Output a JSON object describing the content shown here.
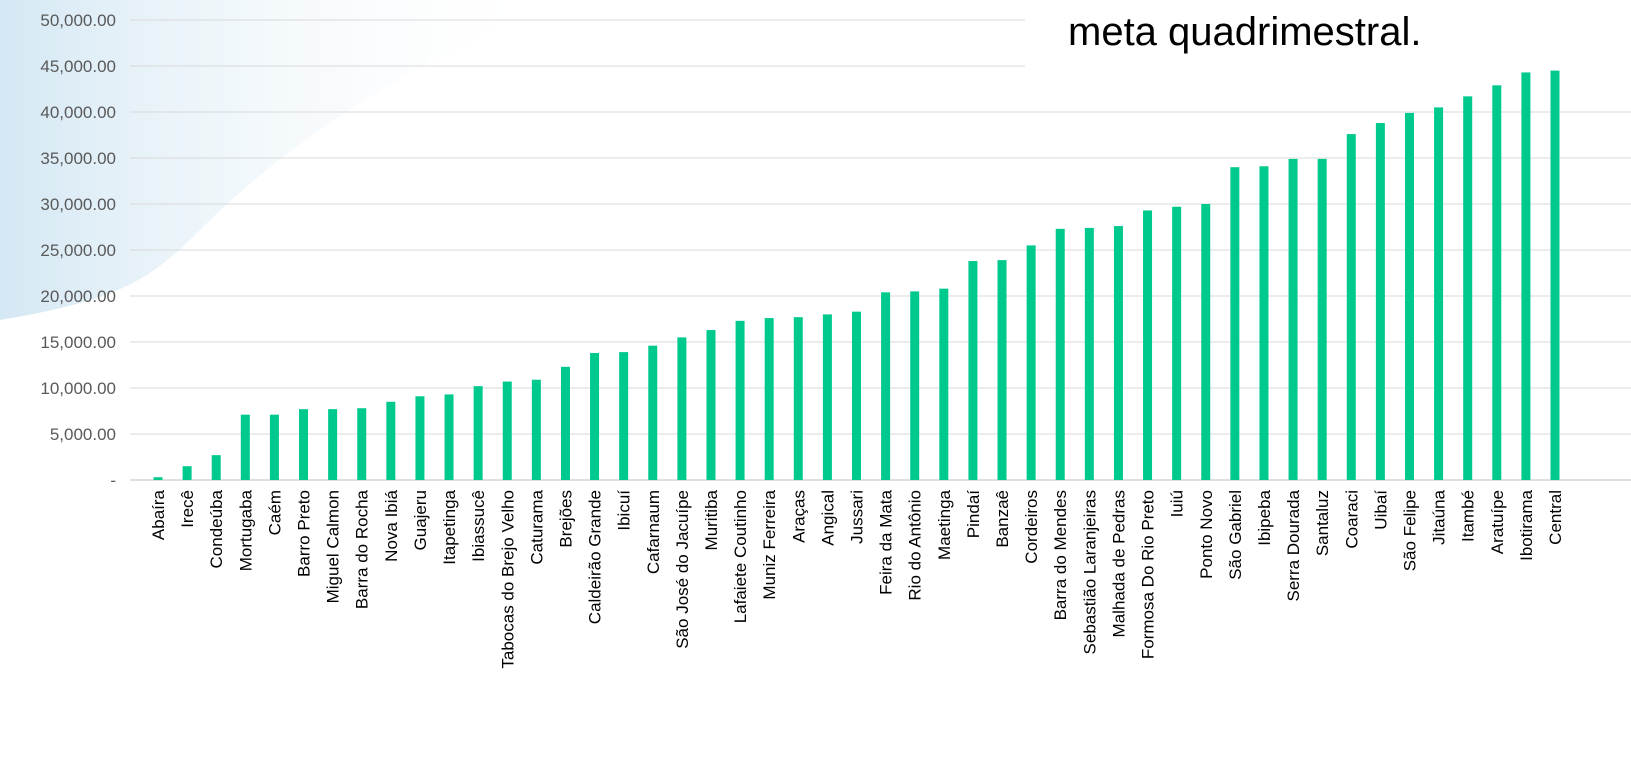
{
  "callout_text": "meta quadrimestral.",
  "chart_data": {
    "type": "bar",
    "title": "",
    "xlabel": "",
    "ylabel": "",
    "ylim": [
      0,
      50000
    ],
    "yticks": [
      0,
      5000,
      10000,
      15000,
      20000,
      25000,
      30000,
      35000,
      40000,
      45000,
      50000
    ],
    "ytick_labels": [
      "-",
      "5,000.00",
      "10,000.00",
      "15,000.00",
      "20,000.00",
      "25,000.00",
      "30,000.00",
      "35,000.00",
      "40,000.00",
      "45,000.00",
      "50,000.00"
    ],
    "grid": true,
    "bar_color": "#00C98E",
    "categories": [
      "Abaíra",
      "Irecê",
      "Condeúba",
      "Mortugaba",
      "Caém",
      "Barro Preto",
      "Miguel Calmon",
      "Barra do Rocha",
      "Nova Ibiá",
      "Guajeru",
      "Itapetinga",
      "Ibiassucê",
      "Tabocas do Brejo Velho",
      "Caturama",
      "Brejões",
      "Caldeirão Grande",
      "Ibicuí",
      "Cafarnaum",
      "São José do Jacuípe",
      "Muritiba",
      "Lafaiete Coutinho",
      "Muniz Ferreira",
      "Araças",
      "Angical",
      "Jussari",
      "Feira da Mata",
      "Rio do Antônio",
      "Maetinga",
      "Pindaí",
      "Banzaê",
      "Cordeiros",
      "Barra do Mendes",
      "Sebastião Laranjeiras",
      "Malhada de Pedras",
      "Formosa Do Rio Preto",
      "Iuiú",
      "Ponto Novo",
      "São Gabriel",
      "Ibipeba",
      "Serra Dourada",
      "Santaluz",
      "Coaraci",
      "Uibaí",
      "São Felipe",
      "Jitaúna",
      "Itambé",
      "Aratuípe",
      "Ibotirama",
      "Central"
    ],
    "values": [
      300,
      1500,
      2700,
      7100,
      7100,
      7700,
      7700,
      7800,
      8500,
      9100,
      9300,
      10200,
      10700,
      10900,
      12300,
      13800,
      13900,
      14600,
      15500,
      16300,
      17300,
      17600,
      17700,
      18000,
      18300,
      20400,
      20500,
      20800,
      23800,
      23900,
      25500,
      27300,
      27400,
      27600,
      29300,
      29700,
      30000,
      34000,
      34100,
      34900,
      34900,
      37600,
      38800,
      39900,
      40500,
      41700,
      42900,
      44300,
      44500
    ]
  }
}
